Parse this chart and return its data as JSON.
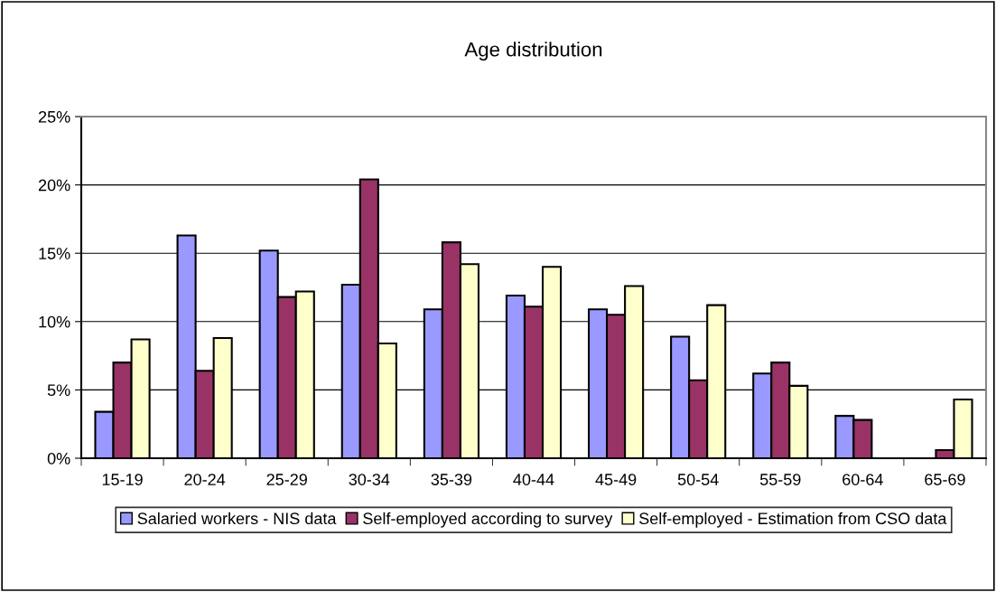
{
  "chart_data": {
    "type": "bar",
    "title": "Age distribution",
    "categories": [
      "15-19",
      "20-24",
      "25-29",
      "30-34",
      "35-39",
      "40-44",
      "45-49",
      "50-54",
      "55-59",
      "60-64",
      "65-69"
    ],
    "series": [
      {
        "name": "Salaried workers - NIS data",
        "color": "#9999ff",
        "values": [
          3.4,
          16.3,
          15.2,
          12.7,
          10.9,
          11.9,
          10.9,
          8.9,
          6.2,
          3.1,
          null
        ]
      },
      {
        "name": "Self-employed according to survey",
        "color": "#993366",
        "values": [
          7.0,
          6.4,
          11.8,
          20.4,
          15.8,
          11.1,
          10.5,
          5.7,
          7.0,
          2.8,
          0.6
        ]
      },
      {
        "name": "Self-employed - Estimation from CSO data",
        "color": "#ffffcc",
        "values": [
          8.7,
          8.8,
          12.2,
          8.4,
          14.2,
          14.0,
          12.6,
          11.2,
          5.3,
          null,
          4.3
        ]
      }
    ],
    "ylim": [
      0,
      25
    ],
    "yticks": [
      {
        "value": 0,
        "label": "0%"
      },
      {
        "value": 5,
        "label": "5%"
      },
      {
        "value": 10,
        "label": "10%"
      },
      {
        "value": 15,
        "label": "15%"
      },
      {
        "value": 20,
        "label": "20%"
      },
      {
        "value": 25,
        "label": "25%"
      }
    ],
    "grid": "y",
    "legend": "bottom"
  }
}
